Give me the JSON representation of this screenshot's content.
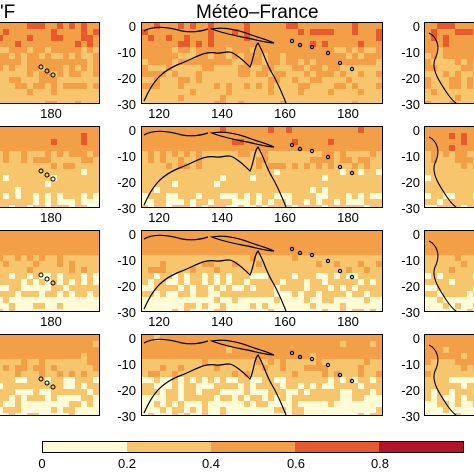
{
  "titles": {
    "left": "'F",
    "center": "Météo–France"
  },
  "colorbar": {
    "colors": [
      "#fffbd6",
      "#f7c56b",
      "#f39f47",
      "#e65a2c",
      "#b4112a"
    ],
    "labels": [
      "0",
      "0.2",
      "0.4",
      "0.6",
      "0.8"
    ]
  },
  "center_panels": {
    "y_ticks": [
      "0",
      "-10",
      "-20",
      "-30"
    ],
    "x_ticks": [
      "120",
      "140",
      "160",
      "180"
    ]
  },
  "left_panels": {
    "x_tick": "180"
  },
  "map_values": {
    "row_fill_levels": [
      [
        0.55,
        0.45,
        0.38,
        0.33
      ],
      [
        0.52,
        0.38,
        0.28,
        0.22
      ],
      [
        0.5,
        0.35,
        0.22,
        0.15
      ],
      [
        0.48,
        0.35,
        0.22,
        0.15
      ]
    ]
  }
}
